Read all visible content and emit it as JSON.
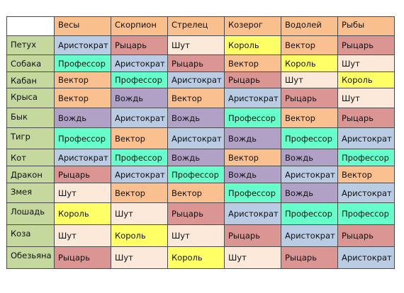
{
  "colors": {
    "header": "#f9c08e",
    "rowlabel": "#c5d89e",
    "Аристократ": "#b9cce4",
    "Рыцарь": "#db9694",
    "Шут": "#fce9da",
    "Король": "#ffff66",
    "Вектор": "#fac08f",
    "Профессор": "#66ffcc",
    "Вождь": "#b2a1c7"
  },
  "columns": [
    "Весы",
    "Скорпион",
    "Стрелец",
    "Козерог",
    "Водолей",
    "Рыбы"
  ],
  "rows": [
    {
      "label": "Петух",
      "cells": [
        "Аристократ",
        "Рыцарь",
        "Шут",
        "Король",
        "Вектор",
        "Рыцарь"
      ]
    },
    {
      "label": "Собака",
      "cells": [
        "Профессор",
        "Аристократ",
        "Рыцарь",
        "Вектор",
        "Король",
        "Шут"
      ]
    },
    {
      "label": "Кабан",
      "cells": [
        "Вектор",
        "Профессор",
        "Аристократ",
        "Рыцарь",
        "Шут",
        "Король"
      ]
    },
    {
      "label": "Крыса",
      "cells": [
        "Вектор",
        "Вождь",
        "Вектор",
        "Аристократ",
        "Рыцарь",
        "Шут"
      ]
    },
    {
      "label": "Бык",
      "cells": [
        "Вождь",
        "Аристократ",
        "Вождь",
        "Профессор",
        "Вектор",
        "Рыцарь"
      ]
    },
    {
      "label": "Тигр",
      "cells": [
        "Профессор",
        "Вектор",
        "Аристократ",
        "Вождь",
        "Профессор",
        "Аристократ"
      ]
    },
    {
      "label": "Кот",
      "cells": [
        "Аристократ",
        "Профессор",
        "Вождь",
        "Вектор",
        "Вождь",
        "Профессор"
      ]
    },
    {
      "label": "Дракон",
      "cells": [
        "Рыцарь",
        "Аристократ",
        "Профессор",
        "Вождь",
        "Аристократ",
        "Вектор"
      ]
    },
    {
      "label": "Змея",
      "cells": [
        "Шут",
        "Вектор",
        "Вектор",
        "Профессор",
        "Вождь",
        "Аристократ"
      ]
    },
    {
      "label": "Лошадь",
      "cells": [
        "Король",
        "Шут",
        "Рыцарь",
        "Аристократ",
        "Профессор",
        "Профессор"
      ]
    },
    {
      "label": "Коза",
      "cells": [
        "Шут",
        "Король",
        "Шут",
        "Рыцарь",
        "Аристократ",
        "Рыцарь"
      ]
    },
    {
      "label": "Обезьяна",
      "cells": [
        "Рыцарь",
        "Шут",
        "Король",
        "Шут",
        "Рыцарь",
        "Аристократ"
      ]
    }
  ]
}
